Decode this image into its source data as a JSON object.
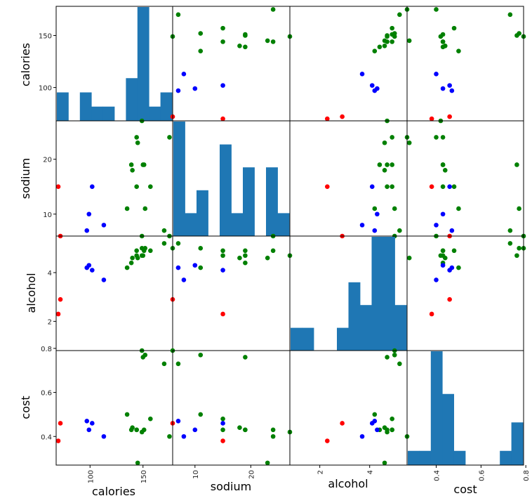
{
  "chart_data": {
    "type": "scatter_matrix",
    "variables": [
      "calories",
      "sodium",
      "alcohol",
      "cost"
    ],
    "axis_labels": {
      "x": [
        "calories",
        "sodium",
        "alcohol",
        "cost"
      ],
      "y": [
        "calories",
        "sodium",
        "alcohol",
        "cost"
      ]
    },
    "ranges": {
      "calories": [
        68,
        178
      ],
      "sodium": [
        6,
        27
      ],
      "alcohol": [
        0.8,
        5.5
      ],
      "cost": [
        0.27,
        0.79
      ]
    },
    "ticks": {
      "x": {
        "calories": [
          100,
          150
        ],
        "sodium": [
          10,
          20
        ],
        "alcohol": [
          2,
          4
        ],
        "cost": [
          0.4,
          0.6,
          0.8
        ]
      },
      "y": {
        "calories": [
          100,
          150
        ],
        "sodium": [
          10,
          20
        ],
        "alcohol": [
          2,
          4
        ],
        "cost": [
          0.4,
          0.6,
          0.8
        ]
      }
    },
    "tick_labels": {
      "x": {
        "calories": [
          "100",
          "150"
        ],
        "sodium": [
          "10",
          "20"
        ],
        "alcohol": [
          "2",
          "4"
        ],
        "cost": [
          "0.4",
          "0.6",
          "0.8"
        ]
      },
      "y": {
        "calories": [
          "100",
          "150"
        ],
        "sodium": [
          "10",
          "20"
        ],
        "alcohol": [
          "2",
          "4"
        ],
        "cost": [
          "0.4",
          "0.6",
          "0.8"
        ]
      }
    },
    "colors": {
      "green": "#008000",
      "blue": "#0000ff",
      "red": "#ff0000",
      "hist": "#1f77b4"
    },
    "points": [
      {
        "calories": 144,
        "sodium": 15,
        "alcohol": 4.7,
        "cost": 0.43,
        "color": "green"
      },
      {
        "calories": 151,
        "sodium": 19,
        "alcohol": 4.9,
        "cost": 0.43,
        "color": "green"
      },
      {
        "calories": 157,
        "sodium": 15,
        "alcohol": 4.9,
        "cost": 0.48,
        "color": "green"
      },
      {
        "calories": 170,
        "sodium": 7,
        "alcohol": 5.2,
        "cost": 0.73,
        "color": "green"
      },
      {
        "calories": 152,
        "sodium": 11,
        "alcohol": 5.0,
        "cost": 0.77,
        "color": "green"
      },
      {
        "calories": 145,
        "sodium": 23,
        "alcohol": 4.6,
        "cost": 0.28,
        "color": "green"
      },
      {
        "calories": 175,
        "sodium": 24,
        "alcohol": 5.5,
        "cost": 0.4,
        "color": "green"
      },
      {
        "calories": 149,
        "sodium": 27,
        "alcohol": 4.7,
        "cost": 0.42,
        "color": "green"
      },
      {
        "calories": 135,
        "sodium": 11,
        "alcohol": 4.2,
        "cost": 0.5,
        "color": "green"
      },
      {
        "calories": 150,
        "sodium": 19,
        "alcohol": 4.7,
        "cost": 0.76,
        "color": "green"
      },
      {
        "calories": 149,
        "sodium": 6,
        "alcohol": 5.0,
        "cost": 0.79,
        "color": "green"
      },
      {
        "calories": 140,
        "sodium": 18,
        "alcohol": 4.6,
        "cost": 0.44,
        "color": "green"
      },
      {
        "calories": 139,
        "sodium": 19,
        "alcohol": 4.4,
        "cost": 0.43,
        "color": "green"
      },
      {
        "calories": 144,
        "sodium": 24,
        "alcohol": 4.9,
        "cost": 0.43,
        "color": "green"
      },
      {
        "calories": 113,
        "sodium": 8,
        "alcohol": 3.7,
        "cost": 0.4,
        "color": "blue"
      },
      {
        "calories": 99,
        "sodium": 10,
        "alcohol": 4.3,
        "cost": 0.43,
        "color": "blue"
      },
      {
        "calories": 102,
        "sodium": 15,
        "alcohol": 4.1,
        "cost": 0.46,
        "color": "blue"
      },
      {
        "calories": 97,
        "sodium": 7,
        "alcohol": 4.2,
        "cost": 0.47,
        "color": "blue"
      },
      {
        "calories": 70,
        "sodium": 15,
        "alcohol": 2.3,
        "cost": 0.38,
        "color": "red"
      },
      {
        "calories": 72,
        "sodium": 6,
        "alcohol": 2.9,
        "cost": 0.46,
        "color": "red"
      }
    ]
  }
}
